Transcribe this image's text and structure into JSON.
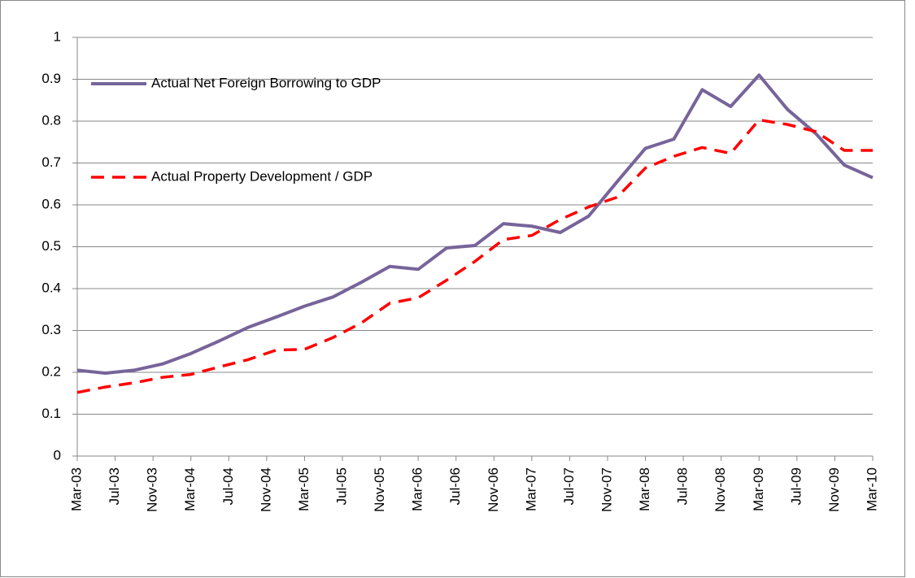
{
  "chart_data": {
    "type": "line",
    "x": [
      "2003-03",
      "2003-06",
      "2003-09",
      "2003-12",
      "2004-03",
      "2004-06",
      "2004-09",
      "2004-12",
      "2005-03",
      "2005-06",
      "2005-09",
      "2005-12",
      "2006-03",
      "2006-06",
      "2006-09",
      "2006-12",
      "2007-03",
      "2007-06",
      "2007-09",
      "2007-12",
      "2008-03",
      "2008-06",
      "2008-09",
      "2008-12",
      "2009-03",
      "2009-06",
      "2009-09",
      "2009-12",
      "2010-03"
    ],
    "xlim": [
      "2003-03",
      "2010-03"
    ],
    "xticks": [
      {
        "value": "2003-03",
        "label": "Mar-03"
      },
      {
        "value": "2003-07",
        "label": "Jul-03"
      },
      {
        "value": "2003-11",
        "label": "Nov-03"
      },
      {
        "value": "2004-03",
        "label": "Mar-04"
      },
      {
        "value": "2004-07",
        "label": "Jul-04"
      },
      {
        "value": "2004-11",
        "label": "Nov-04"
      },
      {
        "value": "2005-03",
        "label": "Mar-05"
      },
      {
        "value": "2005-07",
        "label": "Jul-05"
      },
      {
        "value": "2005-11",
        "label": "Nov-05"
      },
      {
        "value": "2006-03",
        "label": "Mar-06"
      },
      {
        "value": "2006-07",
        "label": "Jul-06"
      },
      {
        "value": "2006-11",
        "label": "Nov-06"
      },
      {
        "value": "2007-03",
        "label": "Mar-07"
      },
      {
        "value": "2007-07",
        "label": "Jul-07"
      },
      {
        "value": "2007-11",
        "label": "Nov-07"
      },
      {
        "value": "2008-03",
        "label": "Mar-08"
      },
      {
        "value": "2008-07",
        "label": "Jul-08"
      },
      {
        "value": "2008-11",
        "label": "Nov-08"
      },
      {
        "value": "2009-03",
        "label": "Mar-09"
      },
      {
        "value": "2009-07",
        "label": "Jul-09"
      },
      {
        "value": "2009-11",
        "label": "Nov-09"
      },
      {
        "value": "2010-03",
        "label": "Mar-10"
      }
    ],
    "ylim": [
      0,
      1
    ],
    "yticks": [
      0,
      0.1,
      0.2,
      0.3,
      0.4,
      0.5,
      0.6,
      0.7,
      0.8,
      0.9,
      1
    ],
    "grid": true,
    "legend": "upper-left",
    "series": [
      {
        "name": "Actual Net Foreign Borrowing to GDP",
        "color": "#77649a",
        "style": "solid",
        "values": [
          0.205,
          0.198,
          0.205,
          0.22,
          0.245,
          0.275,
          0.307,
          0.332,
          0.358,
          0.38,
          0.415,
          0.453,
          0.446,
          0.497,
          0.503,
          0.555,
          0.549,
          0.534,
          0.573,
          0.655,
          0.735,
          0.757,
          0.875,
          0.835,
          0.91,
          0.828,
          0.77,
          0.695,
          0.665
        ]
      },
      {
        "name": "Actual Property Development / GDP",
        "color": "#ff0000",
        "style": "dashed",
        "values": [
          0.152,
          0.165,
          0.175,
          0.188,
          0.195,
          0.213,
          0.23,
          0.253,
          0.255,
          0.283,
          0.318,
          0.365,
          0.378,
          0.42,
          0.465,
          0.517,
          0.527,
          0.565,
          0.595,
          0.618,
          0.688,
          0.716,
          0.737,
          0.723,
          0.803,
          0.792,
          0.775,
          0.73,
          0.73
        ]
      }
    ]
  }
}
